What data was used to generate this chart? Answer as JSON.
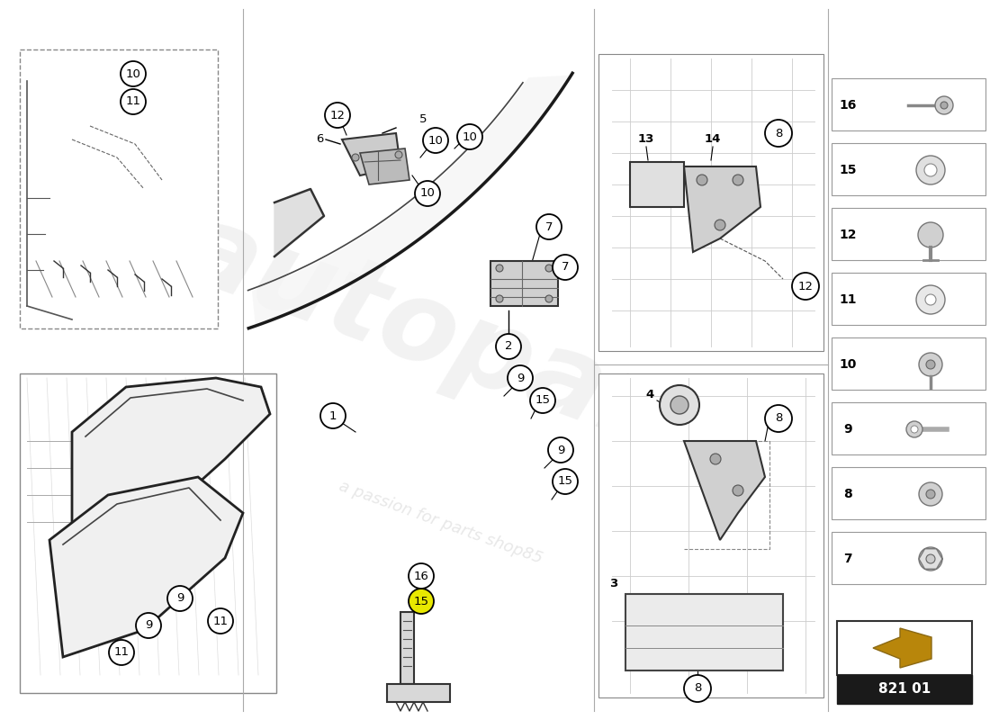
{
  "background_color": "#ffffff",
  "part_number": "821 01",
  "watermark_text": "a passion for parts shop85",
  "legend_items": [
    {
      "num": "16"
    },
    {
      "num": "15"
    },
    {
      "num": "12"
    },
    {
      "num": "11"
    },
    {
      "num": "10"
    },
    {
      "num": "9"
    },
    {
      "num": "8"
    },
    {
      "num": "7"
    }
  ],
  "divider_color": "#cccccc",
  "circle_color": "#000000",
  "circle_bg": "#ffffff",
  "circle_highlight": "#e8e800",
  "label_fontsize": 9.5,
  "figsize": [
    11.0,
    8.0
  ],
  "dpi": 100
}
